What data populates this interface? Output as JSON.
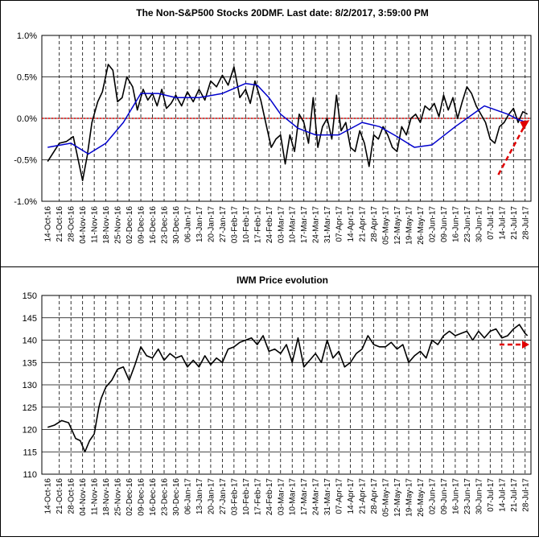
{
  "chart_data": [
    {
      "type": "line",
      "title": "The Non-S&P500 Stocks 20DMF. Last date: 8/2/2017, 3:59:00 PM",
      "xlabel": "",
      "ylabel": "",
      "ylim": [
        -1.0,
        1.0
      ],
      "y_ticks": [
        "1.0%",
        "0.5%",
        "0.0%",
        "-0.5%",
        "-1.0%"
      ],
      "y_tick_values": [
        1.0,
        0.5,
        0.0,
        -0.5,
        -1.0
      ],
      "x_tick_labels": [
        "14-Oct-16",
        "21-Oct-16",
        "28-Oct-16",
        "04-Nov-16",
        "11-Nov-16",
        "18-Nov-16",
        "25-Nov-16",
        "02-Dec-16",
        "09-Dec-16",
        "16-Dec-16",
        "23-Dec-16",
        "30-Dec-16",
        "06-Jan-17",
        "13-Jan-17",
        "20-Jan-17",
        "27-Jan-17",
        "03-Feb-17",
        "10-Feb-17",
        "17-Feb-17",
        "24-Feb-17",
        "03-Mar-17",
        "10-Mar-17",
        "17-Mar-17",
        "24-Mar-17",
        "31-Mar-17",
        "07-Apr-17",
        "14-Apr-17",
        "21-Apr-17",
        "28-Apr-17",
        "05-May-17",
        "12-May-17",
        "19-May-17",
        "26-May-17",
        "02-Jun-17",
        "09-Jun-17",
        "16-Jun-17",
        "23-Jun-17",
        "30-Jun-17",
        "07-Jul-17",
        "14-Jul-17",
        "21-Jul-17",
        "28-Jul-17"
      ],
      "grid": true,
      "zero_line_color": "#e00000",
      "series": [
        {
          "color": "#000000",
          "x": [
            0,
            1,
            1.6,
            2.2,
            3,
            3.4,
            3.8,
            4.3,
            4.7,
            5.2,
            5.6,
            6,
            6.4,
            6.8,
            7.3,
            7.7,
            8.2,
            8.6,
            9,
            9.4,
            9.8,
            10.2,
            10.6,
            11,
            11.5,
            12,
            12.5,
            13,
            13.5,
            14,
            14.5,
            15,
            15.5,
            16,
            16.5,
            17,
            17.4,
            17.8,
            18.3,
            18.8,
            19.2,
            19.6,
            20,
            20.4,
            20.8,
            21.2,
            21.6,
            22,
            22.4,
            22.8,
            23.2,
            23.6,
            24,
            24.4,
            24.8,
            25.2,
            25.6,
            26,
            26.4,
            26.8,
            27.2,
            27.6,
            28,
            28.4,
            28.8,
            29.2,
            29.6,
            30,
            30.4,
            30.8,
            31.2,
            31.6,
            32,
            32.4,
            32.8,
            33.2,
            33.6,
            34,
            34.4,
            34.8,
            35.2,
            35.6,
            36,
            36.4,
            36.8,
            37.2,
            37.6,
            38,
            38.4,
            38.8,
            39.2,
            39.6,
            40,
            40.4,
            40.8,
            41.2
          ],
          "values": [
            -0.52,
            -0.3,
            -0.28,
            -0.22,
            -0.75,
            -0.45,
            -0.05,
            0.2,
            0.32,
            0.65,
            0.58,
            0.2,
            0.25,
            0.5,
            0.38,
            0.1,
            0.35,
            0.22,
            0.3,
            0.15,
            0.35,
            0.12,
            0.18,
            0.28,
            0.15,
            0.32,
            0.2,
            0.35,
            0.22,
            0.45,
            0.38,
            0.52,
            0.4,
            0.62,
            0.25,
            0.35,
            0.18,
            0.45,
            0.22,
            -0.1,
            -0.35,
            -0.25,
            -0.2,
            -0.55,
            -0.2,
            -0.4,
            0.05,
            -0.05,
            -0.3,
            0.25,
            -0.35,
            -0.1,
            0.0,
            -0.25,
            0.28,
            -0.15,
            -0.05,
            -0.35,
            -0.4,
            -0.15,
            -0.3,
            -0.58,
            -0.2,
            -0.25,
            -0.1,
            -0.2,
            -0.35,
            -0.4,
            -0.1,
            -0.2,
            0.0,
            0.05,
            -0.05,
            0.15,
            0.1,
            0.18,
            0.02,
            0.28,
            0.1,
            0.25,
            0.0,
            0.2,
            0.38,
            0.3,
            0.15,
            0.05,
            -0.05,
            -0.25,
            -0.3,
            -0.1,
            -0.05,
            0.05,
            0.12,
            -0.05,
            0.08,
            0.05
          ]
        },
        {
          "color": "#0000cc",
          "x": [
            0,
            2,
            3.5,
            5,
            6.5,
            8,
            9.5,
            11,
            13,
            15,
            17,
            18,
            19,
            20,
            21.5,
            23,
            25,
            27,
            28.5,
            30,
            31.5,
            33,
            35,
            36.5,
            37.5,
            38.5,
            39.5,
            40.5,
            41.2
          ],
          "values": [
            -0.35,
            -0.3,
            -0.43,
            -0.3,
            -0.05,
            0.3,
            0.3,
            0.25,
            0.25,
            0.3,
            0.42,
            0.4,
            0.25,
            0.05,
            -0.12,
            -0.2,
            -0.2,
            -0.05,
            -0.1,
            -0.22,
            -0.35,
            -0.32,
            -0.1,
            0.05,
            0.15,
            0.1,
            0.05,
            -0.02,
            -0.05
          ]
        }
      ],
      "annotations": [
        "red dashed arrow pointing up-right near the latest data"
      ]
    },
    {
      "type": "line",
      "title": "IWM Price evolution",
      "xlabel": "",
      "ylabel": "",
      "ylim": [
        110,
        150
      ],
      "y_ticks": [
        "150",
        "145",
        "140",
        "135",
        "130",
        "125",
        "120",
        "115",
        "110"
      ],
      "y_tick_values": [
        150,
        145,
        140,
        135,
        130,
        125,
        120,
        115,
        110
      ],
      "x_tick_labels": [
        "14-Oct-16",
        "21-Oct-16",
        "28-Oct-16",
        "04-Nov-16",
        "11-Nov-16",
        "18-Nov-16",
        "25-Nov-16",
        "02-Dec-16",
        "09-Dec-16",
        "16-Dec-16",
        "23-Dec-16",
        "30-Dec-16",
        "06-Jan-17",
        "13-Jan-17",
        "20-Jan-17",
        "27-Jan-17",
        "03-Feb-17",
        "10-Feb-17",
        "17-Feb-17",
        "24-Feb-17",
        "03-Mar-17",
        "10-Mar-17",
        "17-Mar-17",
        "24-Mar-17",
        "31-Mar-17",
        "07-Apr-17",
        "14-Apr-17",
        "21-Apr-17",
        "28-Apr-17",
        "05-May-17",
        "12-May-17",
        "19-May-17",
        "26-May-17",
        "02-Jun-17",
        "09-Jun-17",
        "16-Jun-17",
        "23-Jun-17",
        "30-Jun-17",
        "07-Jul-17",
        "14-Jul-17",
        "21-Jul-17",
        "28-Jul-17"
      ],
      "grid": true,
      "series": [
        {
          "color": "#000000",
          "x": [
            0,
            0.6,
            1.2,
            1.8,
            2.4,
            2.8,
            3.2,
            3.6,
            4,
            4.2,
            4.4,
            4.6,
            5,
            5.5,
            6,
            6.5,
            7,
            7.5,
            8,
            8.5,
            9,
            9.5,
            10,
            10.5,
            11,
            11.5,
            12,
            12.5,
            13,
            13.5,
            14,
            14.5,
            15,
            15.5,
            16,
            16.5,
            17,
            17.5,
            18,
            18.5,
            19,
            19.5,
            20,
            20.5,
            21,
            21.5,
            22,
            22.5,
            23,
            23.5,
            24,
            24.5,
            25,
            25.5,
            26,
            26.5,
            27,
            27.5,
            28,
            28.5,
            29,
            29.5,
            30,
            30.5,
            31,
            31.5,
            32,
            32.5,
            33,
            33.5,
            34,
            34.5,
            35,
            35.5,
            36,
            36.5,
            37,
            37.5,
            38,
            38.5,
            39,
            39.5,
            40,
            40.5,
            41,
            41.2
          ],
          "values": [
            120.5,
            121,
            122,
            121.5,
            118,
            117.5,
            115,
            117.5,
            119,
            122,
            125,
            127,
            129.5,
            131,
            133.5,
            134,
            131,
            134.5,
            138.5,
            136.5,
            136,
            138,
            135.5,
            137,
            136,
            136.5,
            134,
            135.5,
            134,
            136.5,
            134.5,
            136,
            135,
            138,
            138.5,
            139.5,
            140,
            140.5,
            139,
            141,
            137.5,
            138,
            137,
            139,
            135,
            140.5,
            134,
            135.5,
            137,
            135,
            140,
            136,
            137.5,
            134,
            135,
            137,
            138,
            141,
            139,
            138.5,
            138.5,
            139.5,
            138,
            139,
            135,
            136.5,
            137.5,
            136,
            140,
            139,
            141,
            142,
            141,
            141.5,
            142,
            140,
            142,
            140.5,
            142,
            142.5,
            140.5,
            141,
            142.5,
            143.5,
            141.5,
            141
          ]
        }
      ],
      "annotations": [
        "red dashed arrow pointing right at about 139"
      ]
    }
  ]
}
